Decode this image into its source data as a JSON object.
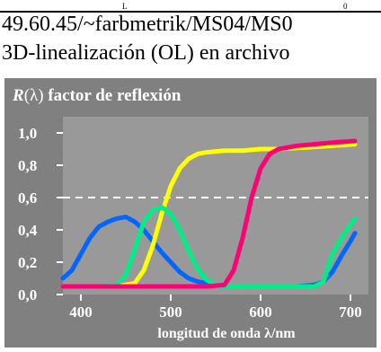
{
  "header": {
    "top_mark_left": "L",
    "top_mark_right": "0",
    "url": "49.60.45/~farbmetrik/MS04/MS0",
    "description": "3D-linealización (OL) en archivo"
  },
  "chart_data": {
    "type": "line",
    "title_var": "R",
    "title_paren": "(λ)",
    "title_text": " factor de reflexión",
    "xlabel": "longitud de onda λ/nm",
    "ylabel": "",
    "xlim": [
      380,
      720
    ],
    "ylim": [
      0.0,
      1.1
    ],
    "x_ticks": [
      400,
      500,
      600,
      700
    ],
    "x_tick_labels": [
      "400",
      "500",
      "600",
      "700"
    ],
    "y_ticks": [
      0.0,
      0.2,
      0.4,
      0.6,
      0.8,
      1.0
    ],
    "y_tick_labels": [
      "0,0",
      "0,2",
      "0,4",
      "0,6",
      "0,8",
      "1,0"
    ],
    "reference_line": {
      "y": 0.6,
      "style": "dashed",
      "color": "#ffffff"
    },
    "background": "#999999",
    "outer_background": "#808080",
    "series": [
      {
        "color": "#0066ff",
        "points": [
          [
            380,
            0.1
          ],
          [
            390,
            0.15
          ],
          [
            400,
            0.25
          ],
          [
            410,
            0.35
          ],
          [
            420,
            0.42
          ],
          [
            430,
            0.45
          ],
          [
            440,
            0.47
          ],
          [
            450,
            0.48
          ],
          [
            460,
            0.45
          ],
          [
            470,
            0.4
          ],
          [
            480,
            0.33
          ],
          [
            490,
            0.26
          ],
          [
            500,
            0.2
          ],
          [
            510,
            0.14
          ],
          [
            520,
            0.1
          ],
          [
            530,
            0.08
          ],
          [
            540,
            0.07
          ],
          [
            550,
            0.06
          ],
          [
            560,
            0.05
          ],
          [
            580,
            0.05
          ],
          [
            600,
            0.05
          ],
          [
            620,
            0.05
          ],
          [
            640,
            0.05
          ],
          [
            660,
            0.06
          ],
          [
            670,
            0.08
          ],
          [
            680,
            0.14
          ],
          [
            690,
            0.24
          ],
          [
            700,
            0.33
          ],
          [
            705,
            0.38
          ]
        ]
      },
      {
        "color": "#ffff00",
        "points": [
          [
            380,
            0.05
          ],
          [
            420,
            0.05
          ],
          [
            440,
            0.05
          ],
          [
            460,
            0.07
          ],
          [
            470,
            0.15
          ],
          [
            480,
            0.3
          ],
          [
            490,
            0.5
          ],
          [
            500,
            0.67
          ],
          [
            510,
            0.78
          ],
          [
            520,
            0.84
          ],
          [
            530,
            0.87
          ],
          [
            540,
            0.88
          ],
          [
            560,
            0.89
          ],
          [
            580,
            0.89
          ],
          [
            600,
            0.9
          ],
          [
            620,
            0.9
          ],
          [
            650,
            0.91
          ],
          [
            680,
            0.92
          ],
          [
            705,
            0.93
          ]
        ]
      },
      {
        "color": "#00ee88",
        "points": [
          [
            380,
            0.05
          ],
          [
            420,
            0.05
          ],
          [
            440,
            0.06
          ],
          [
            450,
            0.12
          ],
          [
            460,
            0.28
          ],
          [
            470,
            0.45
          ],
          [
            480,
            0.52
          ],
          [
            490,
            0.54
          ],
          [
            500,
            0.5
          ],
          [
            510,
            0.4
          ],
          [
            520,
            0.27
          ],
          [
            530,
            0.16
          ],
          [
            540,
            0.09
          ],
          [
            550,
            0.06
          ],
          [
            560,
            0.05
          ],
          [
            600,
            0.05
          ],
          [
            640,
            0.05
          ],
          [
            660,
            0.05
          ],
          [
            670,
            0.08
          ],
          [
            680,
            0.25
          ],
          [
            690,
            0.35
          ],
          [
            700,
            0.43
          ],
          [
            705,
            0.47
          ]
        ]
      },
      {
        "color": "#ff0077",
        "points": [
          [
            380,
            0.05
          ],
          [
            440,
            0.05
          ],
          [
            500,
            0.05
          ],
          [
            540,
            0.05
          ],
          [
            560,
            0.06
          ],
          [
            570,
            0.15
          ],
          [
            580,
            0.35
          ],
          [
            590,
            0.6
          ],
          [
            600,
            0.78
          ],
          [
            610,
            0.87
          ],
          [
            620,
            0.9
          ],
          [
            640,
            0.92
          ],
          [
            660,
            0.93
          ],
          [
            680,
            0.94
          ],
          [
            705,
            0.95
          ]
        ]
      }
    ]
  }
}
